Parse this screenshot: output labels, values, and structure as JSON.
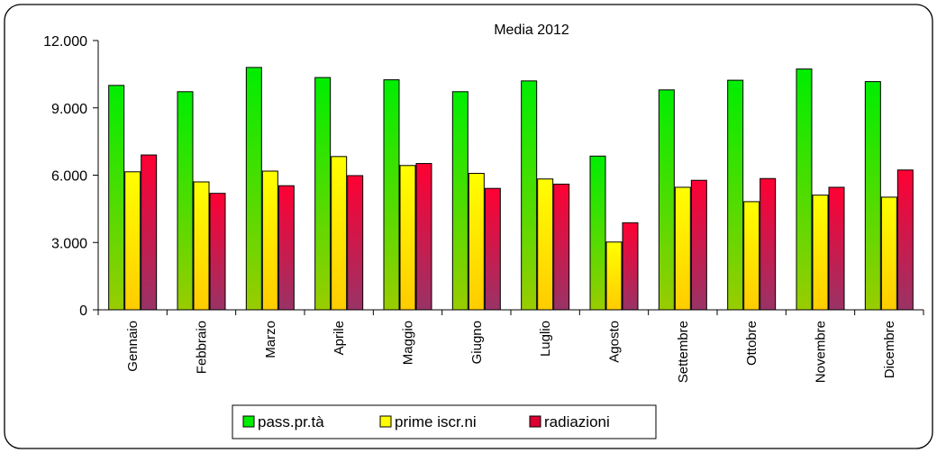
{
  "chart_data": {
    "type": "bar",
    "title": "Media 2012",
    "categories": [
      "Gennaio",
      "Febbraio",
      "Marzo",
      "Aprile",
      "Maggio",
      "Giugno",
      "Luglio",
      "Agosto",
      "Settembre",
      "Ottobre",
      "Novembre",
      "Dicembre"
    ],
    "series": [
      {
        "name": "pass.pr.tà",
        "values": [
          10000,
          9720,
          10800,
          10350,
          10250,
          9720,
          10200,
          6850,
          9800,
          10230,
          10730,
          10170
        ],
        "color_top": "#00ee00",
        "color_bottom": "#99cc00"
      },
      {
        "name": "prime iscr.ni",
        "values": [
          6150,
          5700,
          6180,
          6830,
          6430,
          6080,
          5830,
          3020,
          5460,
          4820,
          5110,
          5020
        ],
        "color_top": "#ffff00",
        "color_bottom": "#ffcc00"
      },
      {
        "name": "radiazioni",
        "values": [
          6900,
          5190,
          5530,
          5980,
          6520,
          5410,
          5600,
          3880,
          5770,
          5850,
          5460,
          6230
        ],
        "color_top": "#ff0033",
        "color_bottom": "#993366"
      }
    ],
    "yticks": [
      "0",
      "3.000",
      "6.000",
      "9.000",
      "12.000"
    ],
    "ylim": [
      0,
      12000
    ],
    "grid": false,
    "legend_position": "bottom"
  }
}
